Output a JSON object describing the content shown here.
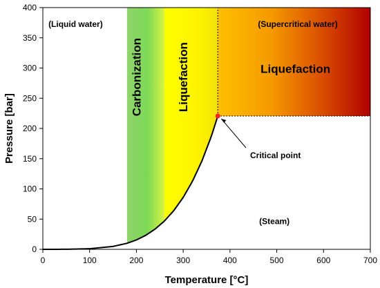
{
  "chart_data": {
    "type": "line",
    "title": "",
    "xlabel": "Temperature [°C]",
    "ylabel": "Pressure [bar]",
    "xlim": [
      0,
      700
    ],
    "ylim": [
      0,
      400
    ],
    "xticks": [
      0,
      100,
      200,
      300,
      400,
      500,
      600,
      700
    ],
    "yticks": [
      0,
      50,
      100,
      150,
      200,
      250,
      300,
      350,
      400
    ],
    "grid": false,
    "series": [
      {
        "name": "",
        "x": [
          0,
          50,
          100,
          150,
          180,
          200,
          220,
          240,
          260,
          280,
          300,
          320,
          340,
          360,
          374
        ],
        "y": [
          0,
          0.1,
          1.0,
          4.8,
          10.0,
          15.5,
          23.2,
          33.5,
          46.9,
          64.2,
          85.9,
          112.9,
          146.1,
          186.7,
          220.6
        ],
        "color": "#000000"
      }
    ],
    "critical_point": {
      "x": 374,
      "y": 220.6,
      "color": "#ff2020",
      "label": "Critical point"
    },
    "regions": [
      {
        "name": "carbonization",
        "x0": 180,
        "x1": 260,
        "label": "Carbonization",
        "colors": [
          "#8fd46a",
          "#7ed957"
        ]
      },
      {
        "name": "liquefaction-subcritical",
        "x0": 260,
        "x1": 374,
        "label": "Liquefaction",
        "colors": [
          "#ffff00",
          "#f5e90a"
        ]
      },
      {
        "name": "liquefaction-supercritical",
        "x0": 374,
        "x1": 700,
        "y0": 220.6,
        "y1": 400,
        "label": "Liquefaction",
        "colors": [
          "#ffc000",
          "#b00000"
        ]
      }
    ],
    "annotations": [
      {
        "name": "liquid-water",
        "text": "(Liquid water)",
        "x": 70,
        "y": 368
      },
      {
        "name": "supercritical-water",
        "text": "(Supercritical water)",
        "x": 545,
        "y": 368
      },
      {
        "name": "steam",
        "text": "(Steam)",
        "x": 495,
        "y": 42
      }
    ]
  }
}
